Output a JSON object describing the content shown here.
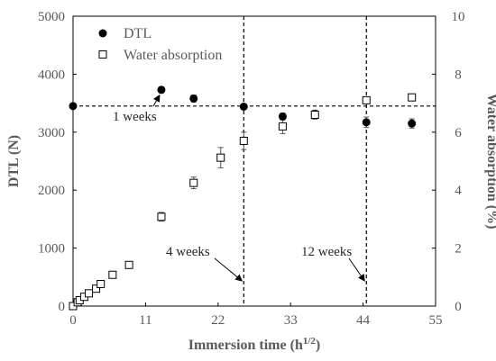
{
  "chart_data": {
    "type": "scatter",
    "xlabel": "Immersion time (h",
    "xlabel_sup": "1/2",
    "xlabel_end": ")",
    "ylabel": "DTL (N)",
    "y2label": "Water absorption  (%)",
    "xlim": [
      0,
      55
    ],
    "xticks": [
      "0",
      "11",
      "22",
      "33",
      "44",
      "55"
    ],
    "ylim": [
      0,
      5000
    ],
    "yticks": [
      "0",
      "1000",
      "2000",
      "3000",
      "4000",
      "5000"
    ],
    "y2lim": [
      0,
      10
    ],
    "y2ticks": [
      "0",
      "2",
      "4",
      "6",
      "8",
      "10"
    ],
    "grid": false,
    "legend_position": "top-left",
    "series": [
      {
        "name": "DTL",
        "marker": "filled-circle",
        "color": "#000000",
        "axis": "left",
        "points": [
          {
            "x": 0,
            "y": 3450,
            "err": 0
          },
          {
            "x": 13.4,
            "y": 3730,
            "err": 50
          },
          {
            "x": 18.3,
            "y": 3580,
            "err": 60
          },
          {
            "x": 25.9,
            "y": 3440,
            "err": 30
          },
          {
            "x": 31.8,
            "y": 3270,
            "err": 60
          },
          {
            "x": 36.7,
            "y": 3310,
            "err": 70
          },
          {
            "x": 44.5,
            "y": 3170,
            "err": 90
          },
          {
            "x": 51.4,
            "y": 3150,
            "err": 80
          }
        ]
      },
      {
        "name": "Water absorption",
        "marker": "open-square",
        "color": "#000000",
        "axis": "right",
        "points": [
          {
            "x": 0,
            "y": 0,
            "err": 0
          },
          {
            "x": 0.7,
            "y": 0.13,
            "err": 0
          },
          {
            "x": 1,
            "y": 0.2,
            "err": 0
          },
          {
            "x": 1.7,
            "y": 0.32,
            "err": 0
          },
          {
            "x": 2.4,
            "y": 0.44,
            "err": 0
          },
          {
            "x": 3.5,
            "y": 0.6,
            "err": 0
          },
          {
            "x": 4.2,
            "y": 0.76,
            "err": 0
          },
          {
            "x": 6,
            "y": 1.08,
            "err": 0
          },
          {
            "x": 8.5,
            "y": 1.42,
            "err": 0
          },
          {
            "x": 13.4,
            "y": 3.08,
            "err": 0.15
          },
          {
            "x": 18.3,
            "y": 4.25,
            "err": 0.2
          },
          {
            "x": 22.4,
            "y": 5.12,
            "err": 0.35
          },
          {
            "x": 25.9,
            "y": 5.7,
            "err": 0.3
          },
          {
            "x": 31.8,
            "y": 6.2,
            "err": 0.25
          },
          {
            "x": 36.7,
            "y": 6.6,
            "err": 0.15
          },
          {
            "x": 44.5,
            "y": 7.1,
            "err": 0.1
          },
          {
            "x": 51.4,
            "y": 7.2,
            "err": 0.1
          }
        ]
      }
    ],
    "reference_lines": [
      {
        "orientation": "horizontal",
        "axis": "left",
        "value": 3450,
        "style": "dashed"
      },
      {
        "orientation": "vertical",
        "value": 25.9,
        "style": "dashed"
      },
      {
        "orientation": "vertical",
        "value": 44.5,
        "style": "dashed"
      }
    ],
    "annotations": [
      {
        "text": "1 weeks",
        "arrow_to": {
          "x": 13.4,
          "y": 3730
        }
      },
      {
        "text": "4 weeks",
        "arrow_to": {
          "x": 25.9,
          "y": 0
        }
      },
      {
        "text": "12 weeks",
        "arrow_to": {
          "x": 44.5,
          "y": 0
        }
      }
    ]
  }
}
